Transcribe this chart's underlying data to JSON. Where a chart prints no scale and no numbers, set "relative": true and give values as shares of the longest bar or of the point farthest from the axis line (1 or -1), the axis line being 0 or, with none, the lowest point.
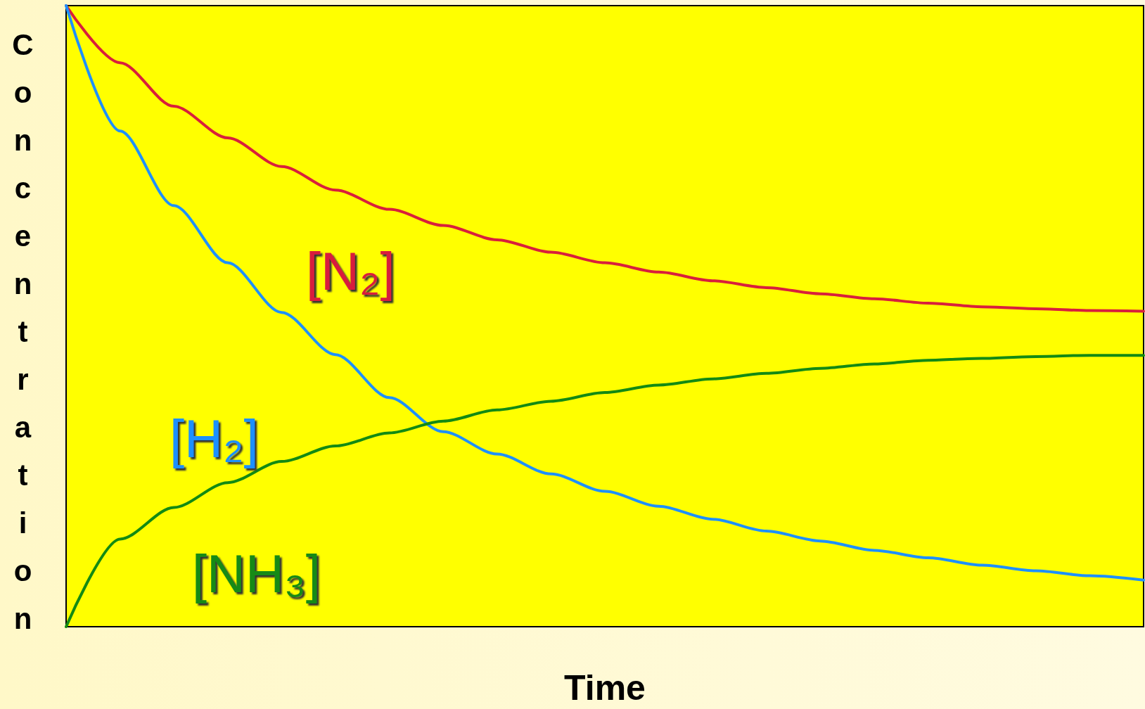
{
  "chart_data": {
    "type": "line",
    "relative": true,
    "xlabel": "Time",
    "ylabel": "Concentration",
    "legend": false,
    "grid": false,
    "marker": "none",
    "line_style": "solid",
    "categories": [
      null,
      null,
      null,
      null,
      null,
      null,
      null,
      null,
      null,
      null,
      null,
      null,
      null,
      null,
      null,
      null,
      null,
      null,
      null,
      null,
      null
    ],
    "series": [
      {
        "name": "[N₂]",
        "color": "#d81f3c",
        "values": [
          1.0,
          0.908,
          0.838,
          0.787,
          0.741,
          0.703,
          0.672,
          0.646,
          0.623,
          0.603,
          0.586,
          0.571,
          0.557,
          0.546,
          0.536,
          0.528,
          0.521,
          0.515,
          0.512,
          0.509,
          0.508
        ]
      },
      {
        "name": "[H₂]",
        "color": "#1e90ff",
        "values": [
          1.0,
          0.798,
          0.678,
          0.586,
          0.506,
          0.438,
          0.369,
          0.314,
          0.278,
          0.246,
          0.218,
          0.194,
          0.173,
          0.154,
          0.138,
          0.123,
          0.111,
          0.099,
          0.09,
          0.082,
          0.075
        ]
      },
      {
        "name": "[NH₃]",
        "color": "#138a13",
        "values": [
          0,
          0.141,
          0.192,
          0.232,
          0.266,
          0.291,
          0.312,
          0.331,
          0.349,
          0.363,
          0.377,
          0.389,
          0.399,
          0.408,
          0.416,
          0.423,
          0.429,
          0.432,
          0.435,
          0.437,
          0.437
        ]
      }
    ]
  }
}
